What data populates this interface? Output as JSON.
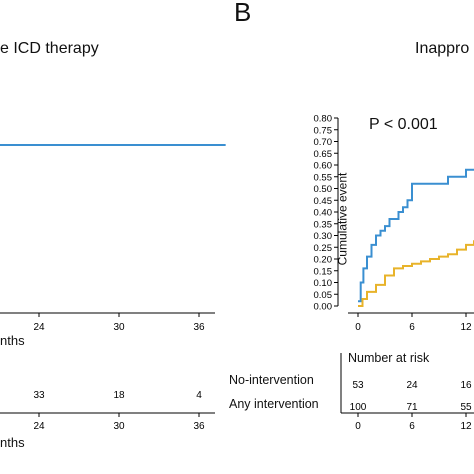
{
  "panel_label": "B",
  "left_panel": {
    "title": "e ICD therapy",
    "xlabel_top": "nths",
    "xlabel_bottom": "nths",
    "x_ticks": [
      "24",
      "30",
      "36"
    ],
    "risk_values": [
      "33",
      "18",
      "4"
    ],
    "risk_ticks": [
      "24",
      "30",
      "36"
    ],
    "line_color": "#3a8fd1"
  },
  "right_panel": {
    "title": "Inappro",
    "p_value": "P < 0.001",
    "ylabel": "Cumulative event",
    "y_ticks": [
      "0.00",
      "0.05",
      "0.10",
      "0.15",
      "0.20",
      "0.25",
      "0.30",
      "0.35",
      "0.40",
      "0.45",
      "0.50",
      "0.55",
      "0.60",
      "0.65",
      "0.70",
      "0.75",
      "0.80"
    ],
    "x_ticks": [
      "0",
      "6",
      "12"
    ],
    "risk_title": "Number at risk",
    "risk_rows": [
      {
        "label": "No-intervention",
        "values": [
          "53",
          "24",
          "16"
        ]
      },
      {
        "label": "Any intervention",
        "values": [
          "100",
          "71",
          "55"
        ]
      }
    ],
    "risk_x_ticks": [
      "0",
      "6",
      "12"
    ]
  },
  "chart_data": [
    {
      "type": "line",
      "title": "e ICD therapy",
      "xlabel": "nths",
      "x_ticks": [
        24,
        30,
        36
      ],
      "series": [
        {
          "color": "#3a8fd1",
          "x": [
            18,
            38
          ],
          "y": [
            1,
            1
          ]
        }
      ]
    },
    {
      "type": "line",
      "title": "Inappro",
      "ylabel": "Cumulative event",
      "ylim": [
        0,
        0.8
      ],
      "xlim": [
        -1,
        13
      ],
      "x_ticks": [
        0,
        6,
        12
      ],
      "annotation": "P < 0.001",
      "series": [
        {
          "color": "#3a8fd1",
          "x": [
            0,
            0.3,
            0.6,
            1,
            1.5,
            2,
            2.5,
            3,
            3.5,
            4,
            4.5,
            5,
            5.5,
            6,
            6.5,
            7,
            8,
            9,
            10,
            11,
            12,
            13
          ],
          "y": [
            0.02,
            0.1,
            0.16,
            0.21,
            0.26,
            0.3,
            0.32,
            0.34,
            0.37,
            0.37,
            0.4,
            0.42,
            0.45,
            0.52,
            0.52,
            0.52,
            0.52,
            0.52,
            0.55,
            0.55,
            0.58,
            0.58
          ]
        },
        {
          "color": "#e8b32a",
          "x": [
            0,
            0.5,
            1,
            2,
            3,
            4,
            5,
            6,
            7,
            8,
            9,
            10,
            11,
            12,
            13
          ],
          "y": [
            0.0,
            0.03,
            0.06,
            0.09,
            0.13,
            0.16,
            0.17,
            0.18,
            0.19,
            0.2,
            0.21,
            0.22,
            0.24,
            0.26,
            0.28
          ]
        }
      ]
    }
  ]
}
